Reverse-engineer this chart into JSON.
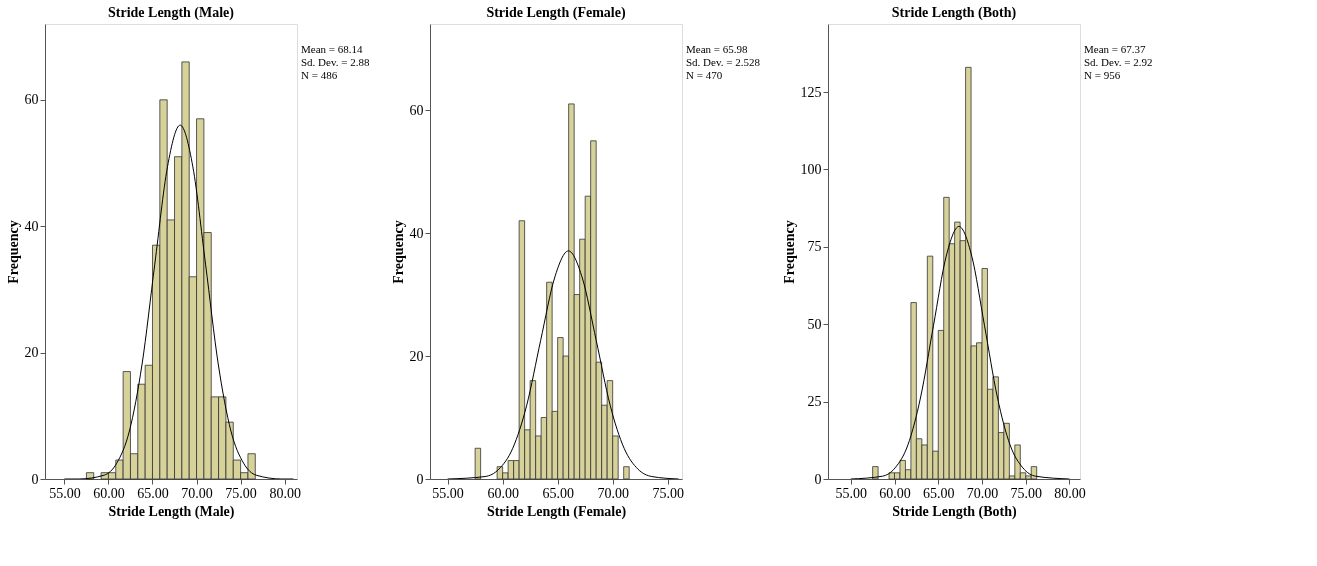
{
  "chart_data": [
    {
      "type": "histogram",
      "title": "Stride Length (Male)",
      "xlabel": "Stride Length (Male)",
      "ylabel": "Frequency",
      "color": "#d6d29a",
      "bins": [
        57.5,
        58.333,
        59.167,
        60.0,
        60.833,
        61.667,
        62.5,
        63.333,
        64.167,
        65.0,
        65.833,
        66.667,
        67.5,
        68.333,
        69.167,
        70.0,
        70.833,
        71.667,
        72.5,
        73.333,
        74.167,
        75.0,
        75.833,
        76.667
      ],
      "values": [
        1,
        0,
        1,
        1,
        3,
        17,
        4,
        15,
        18,
        37,
        60,
        41,
        51,
        66,
        32,
        57,
        39,
        13,
        13,
        9,
        3,
        1,
        4
      ],
      "series": [
        {
          "type": "line",
          "color": "#000000",
          "x": [
            55,
            56.62,
            59.5,
            60.94,
            62.38,
            63.82,
            65.26,
            66.7,
            68.14,
            69.58,
            71.02,
            72.46,
            73.9,
            75.34,
            76.78,
            79.66,
            81
          ],
          "values": [
            0,
            0.0,
            0.6,
            2.5,
            7.6,
            18.2,
            34,
            49.4,
            56,
            49.4,
            34,
            18.2,
            7.6,
            2.5,
            0.6,
            0.0,
            0
          ]
        }
      ],
      "xlim": [
        52.8,
        81.4
      ],
      "ylim": [
        0,
        72
      ],
      "xticks": [
        {
          "value": 55,
          "label": "55.00"
        },
        {
          "value": 60,
          "label": "60.00"
        },
        {
          "value": 65,
          "label": "65.00"
        },
        {
          "value": 70,
          "label": "70.00"
        },
        {
          "value": 75,
          "label": "75.00"
        },
        {
          "value": 80,
          "label": "80.00"
        }
      ],
      "yticks": [
        0,
        20,
        40,
        60
      ],
      "grid": false,
      "annotations": [
        "Mean = 68.14",
        "Sd. Dev. = 2.88",
        "N = 486"
      ]
    },
    {
      "type": "histogram",
      "title": "Stride Length (Female)",
      "xlabel": "Stride Length (Female)",
      "ylabel": "Frequency",
      "color": "#d6d29a",
      "bins": [
        57.5,
        58.0,
        58.5,
        59.0,
        59.5,
        60.0,
        60.5,
        61.0,
        61.5,
        62.0,
        62.5,
        63.0,
        63.5,
        64.0,
        64.5,
        65.0,
        65.5,
        66.0,
        66.5,
        67.0,
        67.5,
        68.0,
        68.5,
        69.0,
        69.5,
        70.0,
        70.5,
        71.0,
        71.5
      ],
      "values": [
        5,
        0,
        0,
        0,
        2,
        1,
        3,
        3,
        42,
        8,
        16,
        7,
        10,
        32,
        11,
        23,
        20,
        61,
        30,
        39,
        46,
        55,
        19,
        12,
        16,
        7,
        0,
        2
      ],
      "series": [
        {
          "type": "line",
          "color": "#000000",
          "x": [
            55,
            58.4,
            59.66,
            60.92,
            62.19,
            63.45,
            64.72,
            65.98,
            67.24,
            68.51,
            69.77,
            71.04,
            72.3,
            73.56,
            76
          ],
          "values": [
            0,
            0.4,
            1.6,
            5,
            12,
            22.5,
            32.7,
            37.1,
            32.7,
            22.5,
            12,
            5,
            1.6,
            0.4,
            0
          ]
        }
      ],
      "xlim": [
        53.4,
        76.3
      ],
      "ylim": [
        0,
        74
      ],
      "xticks": [
        {
          "value": 55,
          "label": "55.00"
        },
        {
          "value": 60,
          "label": "60.00"
        },
        {
          "value": 65,
          "label": "65.00"
        },
        {
          "value": 70,
          "label": "70.00"
        },
        {
          "value": 75,
          "label": "75.00"
        }
      ],
      "yticks": [
        0,
        20,
        40,
        60
      ],
      "grid": false,
      "annotations": [
        "Mean = 65.98",
        "Sd. Dev. = 2.528",
        "N = 470"
      ]
    },
    {
      "type": "histogram",
      "title": "Stride Length (Both)",
      "xlabel": "Stride Length (Both)",
      "ylabel": "Frequency",
      "color": "#d6d29a",
      "bins": [
        57.5,
        58.125,
        58.75,
        59.375,
        60.0,
        60.625,
        61.25,
        61.875,
        62.5,
        63.125,
        63.75,
        64.375,
        65.0,
        65.625,
        66.25,
        66.875,
        67.5,
        68.125,
        68.75,
        69.375,
        70.0,
        70.625,
        71.25,
        71.875,
        72.5,
        73.125,
        73.75,
        74.375,
        75.0,
        75.625,
        76.25
      ],
      "values": [
        4,
        0,
        0,
        2,
        2,
        6,
        3,
        57,
        13,
        11,
        72,
        9,
        48,
        91,
        76,
        83,
        77,
        133,
        43,
        44,
        68,
        29,
        33,
        15,
        18,
        1,
        11,
        2,
        1,
        4
      ],
      "series": [
        {
          "type": "line",
          "color": "#000000",
          "x": [
            55,
            58.61,
            60.07,
            61.53,
            62.99,
            64.45,
            65.91,
            67.37,
            68.83,
            70.29,
            71.75,
            73.21,
            74.67,
            76.13,
            80
          ],
          "values": [
            0,
            0.9,
            3.6,
            11,
            26.5,
            49.5,
            72,
            81.6,
            72,
            49.5,
            26.5,
            11,
            3.6,
            0.9,
            0
          ]
        }
      ],
      "xlim": [
        52.4,
        81.2
      ],
      "ylim": [
        0,
        147
      ],
      "xticks": [
        {
          "value": 55,
          "label": "55.00"
        },
        {
          "value": 60,
          "label": "60.00"
        },
        {
          "value": 65,
          "label": "65.00"
        },
        {
          "value": 70,
          "label": "70.00"
        },
        {
          "value": 75,
          "label": "75.00"
        },
        {
          "value": 80,
          "label": "80.00"
        }
      ],
      "yticks": [
        0,
        25,
        50,
        75,
        100,
        125
      ],
      "grid": false,
      "annotations": [
        "Mean = 67.37",
        "Sd. Dev. = 2.92",
        "N = 956"
      ]
    }
  ]
}
